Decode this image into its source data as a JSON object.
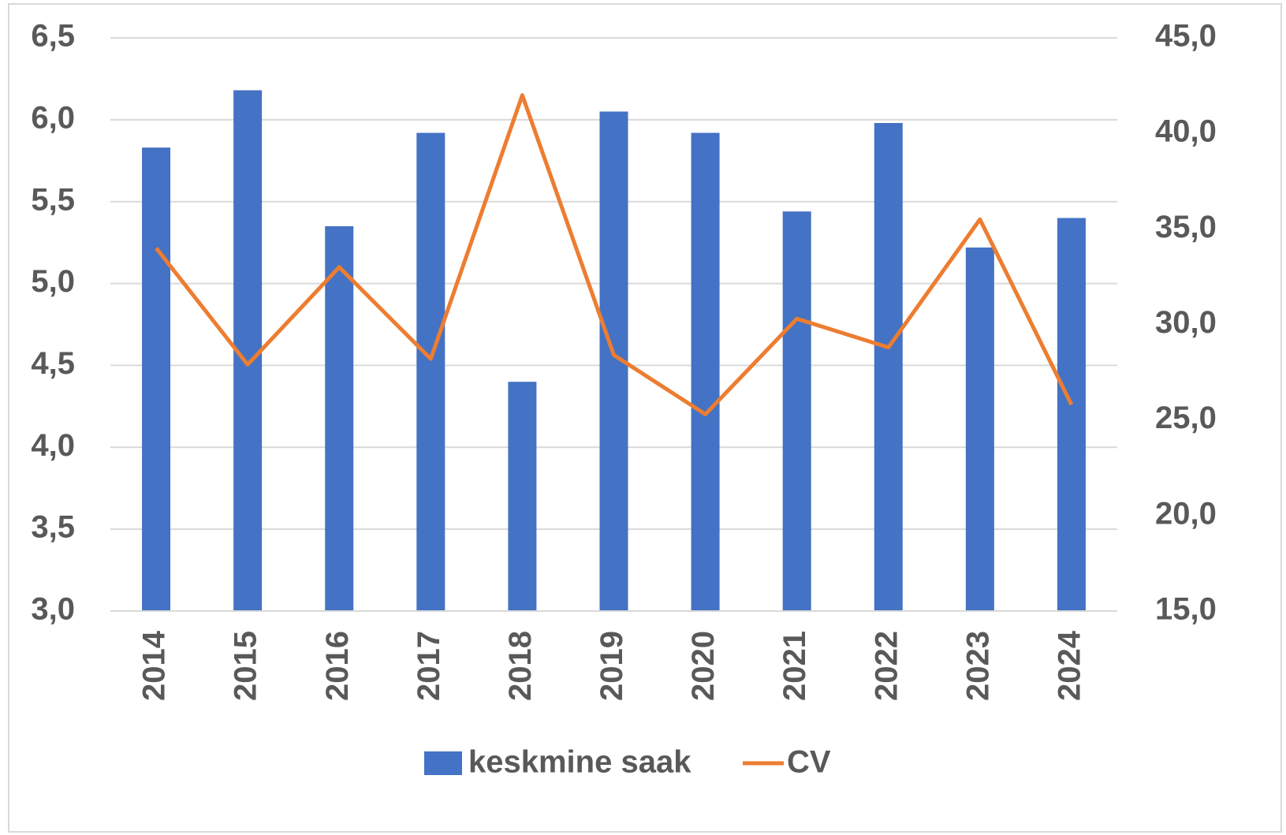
{
  "chart_data": {
    "type": "bar+line",
    "categories": [
      "2014",
      "2015",
      "2016",
      "2017",
      "2018",
      "2019",
      "2020",
      "2021",
      "2022",
      "2023",
      "2024"
    ],
    "series": [
      {
        "name": "keskmine saak",
        "type": "bar",
        "color": "#4472c4",
        "values": [
          5.83,
          6.18,
          5.35,
          5.92,
          4.4,
          6.05,
          5.92,
          5.44,
          5.98,
          5.22,
          5.4
        ]
      },
      {
        "name": "CV",
        "type": "line",
        "axis": "y2",
        "color": "#ed7d31",
        "values": [
          34.0,
          27.9,
          33.0,
          28.2,
          42.0,
          28.4,
          25.3,
          30.3,
          28.8,
          35.5,
          25.8
        ]
      }
    ],
    "ylim": [
      3.0,
      6.5
    ],
    "yticks": [
      {
        "value": 3.0,
        "label": "3,0"
      },
      {
        "value": 3.5,
        "label": "3,5"
      },
      {
        "value": 4.0,
        "label": "4,0"
      },
      {
        "value": 4.5,
        "label": "4,5"
      },
      {
        "value": 5.0,
        "label": "5,0"
      },
      {
        "value": 5.5,
        "label": "5,5"
      },
      {
        "value": 6.0,
        "label": "6,0"
      },
      {
        "value": 6.5,
        "label": "6,5"
      }
    ],
    "y2lim": [
      15.0,
      45.0
    ],
    "y2ticks": [
      {
        "value": 15.0,
        "label": "15,0"
      },
      {
        "value": 20.0,
        "label": "20,0"
      },
      {
        "value": 25.0,
        "label": "25,0"
      },
      {
        "value": 30.0,
        "label": "30,0"
      },
      {
        "value": 35.0,
        "label": "35,0"
      },
      {
        "value": 40.0,
        "label": "40,0"
      },
      {
        "value": 45.0,
        "label": "45,0"
      }
    ],
    "grid": true,
    "legend": "bottom"
  }
}
